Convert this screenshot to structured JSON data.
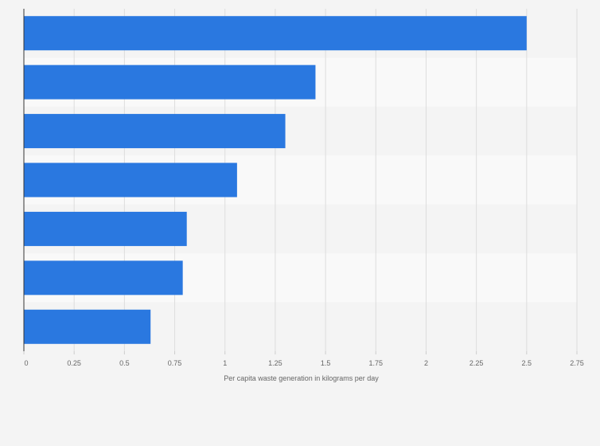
{
  "chart_data": {
    "type": "bar",
    "orientation": "horizontal",
    "categories": [
      "",
      "",
      "",
      "",
      "",
      "",
      ""
    ],
    "values": [
      2.5,
      1.45,
      1.3,
      1.06,
      0.81,
      0.79,
      0.63
    ],
    "title": "",
    "xlabel": "Per capita waste generation in kilograms per day",
    "ylabel": "",
    "xlim": [
      0,
      2.75
    ],
    "xticks": [
      "0",
      "0.25",
      "0.5",
      "0.75",
      "1",
      "1.25",
      "1.5",
      "1.75",
      "2",
      "2.25",
      "2.5",
      "2.75"
    ],
    "grid": true,
    "legend": "none",
    "bar_color": "#2a78e0",
    "band_colors": [
      "#f4f4f4",
      "#f9f9f9"
    ],
    "grid_color": "#dddddd",
    "axis_color": "#333333"
  }
}
